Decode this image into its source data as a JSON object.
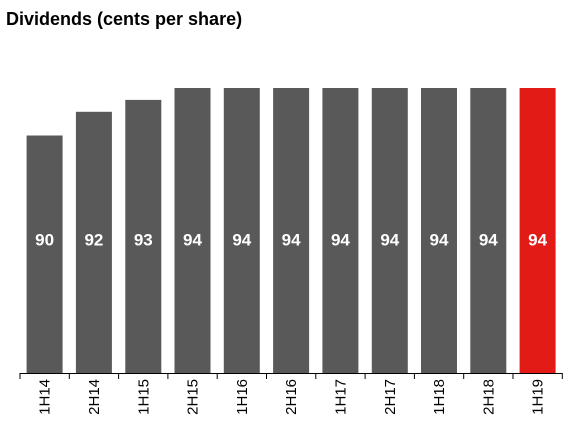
{
  "chart_data": {
    "type": "bar",
    "title": "Dividends (cents per share)",
    "categories": [
      "1H14",
      "2H14",
      "1H15",
      "2H15",
      "1H16",
      "2H16",
      "1H17",
      "2H17",
      "1H18",
      "2H18",
      "1H19"
    ],
    "values": [
      90,
      92,
      93,
      94,
      94,
      94,
      94,
      94,
      94,
      94,
      94
    ],
    "data_labels": [
      "90",
      "92",
      "93",
      "94",
      "94",
      "94",
      "94",
      "94",
      "94",
      "94",
      "94"
    ],
    "xlabel": "",
    "ylabel": "",
    "ylim": [
      0,
      94
    ],
    "grid": false,
    "colors": {
      "default": "#595959",
      "highlight": "#e31b17",
      "highlight_category": "1H19"
    }
  }
}
